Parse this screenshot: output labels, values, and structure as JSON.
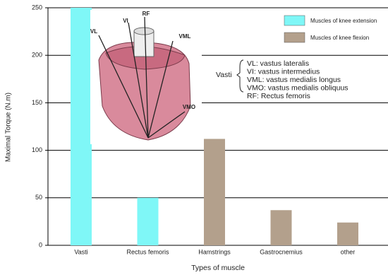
{
  "chart_data": {
    "type": "bar",
    "categories": [
      "Vasti",
      "Rectus femoris",
      "Hamstrings",
      "Gastrocnemius",
      "other"
    ],
    "series": [
      {
        "name": "Muscles  of knee extension",
        "color": "#7ff7f7",
        "values": [
          250,
          50,
          null,
          null,
          null
        ]
      },
      {
        "name": "Muscles  of knee flexion",
        "color": "#b3a08c",
        "values": [
          null,
          null,
          112,
          37,
          24
        ]
      }
    ],
    "ylim": [
      0,
      250
    ],
    "yticks": [
      0,
      50,
      100,
      150,
      200,
      250
    ],
    "grid": true,
    "xlabel": "Types of muscle",
    "ylabel": "Maximal Torque (N.m)",
    "annotations": [
      "VL",
      "VI",
      "RF",
      "VML",
      "VMO",
      "Vasti",
      "VL: vastus lateralis",
      "VI: vastus intermedius",
      "VML: vastus medialis longus",
      "VMO: vastus medialis obliquus",
      "RF: Rectus femoris"
    ]
  }
}
